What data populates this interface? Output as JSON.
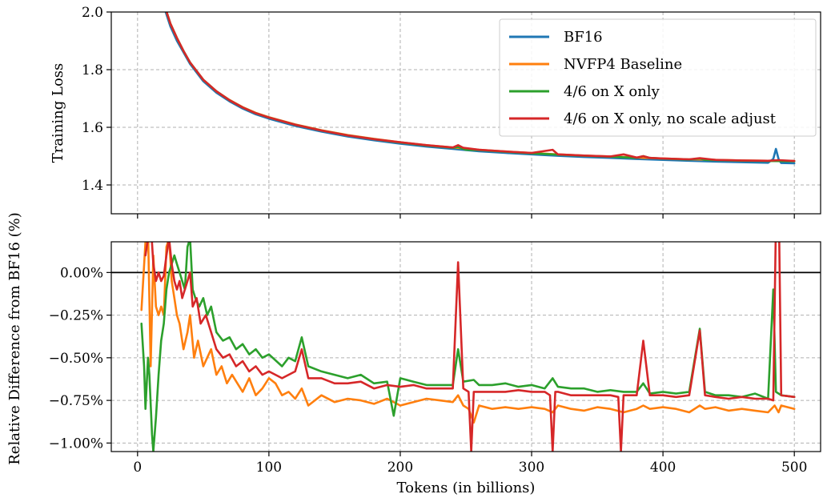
{
  "chart_data": [
    {
      "type": "line",
      "ylabel": "Training Loss",
      "xlabel": "",
      "xlim": [
        -20,
        520
      ],
      "ylim": [
        1.3,
        2.0
      ],
      "xticks": [
        0,
        100,
        200,
        300,
        400,
        500
      ],
      "yticks": [
        1.4,
        1.6,
        1.8,
        2.0
      ],
      "ytick_labels": [
        "1.4",
        "1.6",
        "1.8",
        "2.0"
      ],
      "grid": true,
      "legend_position": "top-right",
      "series": [
        {
          "name": "BF16",
          "color": "#1f77b4",
          "x": [
            20,
            25,
            30,
            35,
            40,
            50,
            60,
            70,
            80,
            90,
            100,
            120,
            140,
            160,
            180,
            200,
            220,
            240,
            260,
            280,
            300,
            320,
            340,
            360,
            380,
            400,
            420,
            440,
            460,
            480,
            484,
            486,
            488,
            490,
            500
          ],
          "y": [
            2.02,
            1.95,
            1.9,
            1.86,
            1.82,
            1.76,
            1.72,
            1.69,
            1.665,
            1.645,
            1.63,
            1.605,
            1.585,
            1.568,
            1.555,
            1.543,
            1.533,
            1.525,
            1.517,
            1.511,
            1.506,
            1.501,
            1.497,
            1.494,
            1.49,
            1.487,
            1.484,
            1.481,
            1.479,
            1.477,
            1.49,
            1.525,
            1.49,
            1.476,
            1.475
          ]
        },
        {
          "name": "NVFP4 Baseline",
          "color": "#ff7f0e",
          "x": [
            20,
            25,
            30,
            35,
            40,
            50,
            60,
            70,
            80,
            90,
            100,
            120,
            140,
            160,
            180,
            200,
            220,
            240,
            260,
            280,
            300,
            320,
            340,
            360,
            380,
            400,
            420,
            440,
            460,
            480,
            500
          ],
          "y": [
            2.03,
            1.96,
            1.91,
            1.865,
            1.825,
            1.765,
            1.725,
            1.695,
            1.67,
            1.65,
            1.635,
            1.61,
            1.59,
            1.573,
            1.56,
            1.548,
            1.538,
            1.53,
            1.522,
            1.516,
            1.511,
            1.506,
            1.502,
            1.499,
            1.495,
            1.492,
            1.489,
            1.487,
            1.485,
            1.484,
            1.483
          ]
        },
        {
          "name": "4/6 on X only",
          "color": "#2ca02c",
          "x": [
            20,
            25,
            30,
            35,
            40,
            50,
            60,
            70,
            80,
            90,
            100,
            120,
            140,
            160,
            180,
            200,
            220,
            240,
            244,
            250,
            260,
            280,
            300,
            320,
            340,
            360,
            380,
            385,
            390,
            400,
            420,
            428,
            432,
            440,
            460,
            480,
            500
          ],
          "y": [
            2.03,
            1.96,
            1.91,
            1.865,
            1.825,
            1.765,
            1.725,
            1.694,
            1.669,
            1.649,
            1.634,
            1.609,
            1.589,
            1.572,
            1.559,
            1.547,
            1.537,
            1.529,
            1.532,
            1.522,
            1.521,
            1.515,
            1.51,
            1.505,
            1.501,
            1.498,
            1.494,
            1.5,
            1.494,
            1.491,
            1.488,
            1.492,
            1.487,
            1.486,
            1.484,
            1.483,
            1.482
          ]
        },
        {
          "name": "4/6 on X only, no scale adjust",
          "color": "#d62728",
          "x": [
            20,
            25,
            30,
            35,
            40,
            50,
            60,
            70,
            80,
            90,
            100,
            120,
            140,
            160,
            180,
            200,
            220,
            240,
            244,
            248,
            260,
            280,
            300,
            316,
            320,
            340,
            360,
            370,
            380,
            385,
            390,
            400,
            420,
            428,
            440,
            460,
            480,
            488,
            500
          ],
          "y": [
            2.03,
            1.96,
            1.91,
            1.865,
            1.825,
            1.765,
            1.725,
            1.694,
            1.669,
            1.649,
            1.634,
            1.609,
            1.589,
            1.572,
            1.559,
            1.548,
            1.538,
            1.53,
            1.538,
            1.529,
            1.522,
            1.516,
            1.511,
            1.522,
            1.506,
            1.502,
            1.499,
            1.506,
            1.495,
            1.5,
            1.494,
            1.492,
            1.489,
            1.493,
            1.487,
            1.485,
            1.484,
            1.486,
            1.483
          ]
        }
      ]
    },
    {
      "type": "line",
      "ylabel": "Relative Difference from BF16 (%)",
      "xlabel": "Tokens (in billions)",
      "xlim": [
        -20,
        520
      ],
      "ylim": [
        -1.05,
        0.18
      ],
      "xticks": [
        0,
        100,
        200,
        300,
        400,
        500
      ],
      "xtick_labels": [
        "0",
        "100",
        "200",
        "300",
        "400",
        "500"
      ],
      "yticks": [
        0.0,
        -0.25,
        -0.5,
        -0.75,
        -1.0
      ],
      "ytick_labels": [
        "0.00%",
        "−0.25%",
        "−0.50%",
        "−0.75%",
        "−1.00%"
      ],
      "reference_line": 0.0,
      "grid": true,
      "series": [
        {
          "name": "NVFP4 Baseline",
          "color": "#ff7f0e",
          "x": [
            3,
            6,
            8,
            10,
            12,
            14,
            16,
            18,
            20,
            22,
            24,
            26,
            28,
            30,
            32,
            35,
            38,
            40,
            43,
            46,
            50,
            53,
            56,
            60,
            64,
            68,
            72,
            76,
            80,
            85,
            90,
            95,
            100,
            105,
            110,
            115,
            120,
            125,
            130,
            140,
            150,
            160,
            170,
            180,
            190,
            200,
            210,
            220,
            230,
            240,
            244,
            248,
            252,
            256,
            260,
            270,
            280,
            290,
            300,
            310,
            316,
            320,
            330,
            340,
            350,
            360,
            370,
            380,
            385,
            390,
            400,
            410,
            420,
            428,
            432,
            440,
            450,
            460,
            470,
            480,
            485,
            488,
            490,
            495,
            500
          ],
          "y": [
            -0.22,
            0.18,
            0.25,
            -0.55,
            0.1,
            -0.2,
            -0.25,
            -0.2,
            -0.25,
            0.15,
            0.2,
            -0.05,
            -0.15,
            -0.25,
            -0.3,
            -0.45,
            -0.35,
            -0.25,
            -0.5,
            -0.4,
            -0.55,
            -0.5,
            -0.45,
            -0.6,
            -0.55,
            -0.65,
            -0.6,
            -0.65,
            -0.7,
            -0.62,
            -0.72,
            -0.68,
            -0.62,
            -0.65,
            -0.72,
            -0.7,
            -0.74,
            -0.68,
            -0.78,
            -0.72,
            -0.76,
            -0.74,
            -0.75,
            -0.77,
            -0.74,
            -0.78,
            -0.76,
            -0.74,
            -0.75,
            -0.76,
            -0.72,
            -0.78,
            -0.8,
            -0.88,
            -0.78,
            -0.8,
            -0.79,
            -0.8,
            -0.79,
            -0.8,
            -0.82,
            -0.78,
            -0.8,
            -0.81,
            -0.79,
            -0.8,
            -0.82,
            -0.8,
            -0.78,
            -0.8,
            -0.79,
            -0.8,
            -0.82,
            -0.78,
            -0.8,
            -0.79,
            -0.81,
            -0.8,
            -0.81,
            -0.82,
            -0.78,
            -0.82,
            -0.78,
            -0.79,
            -0.8
          ]
        },
        {
          "name": "4/6 on X only",
          "color": "#2ca02c",
          "x": [
            3,
            5,
            6,
            8,
            9,
            11,
            12,
            14,
            16,
            18,
            20,
            22,
            24,
            26,
            28,
            30,
            32,
            34,
            36,
            38,
            40,
            42,
            44,
            47,
            50,
            53,
            56,
            60,
            65,
            70,
            75,
            80,
            85,
            90,
            95,
            100,
            110,
            115,
            120,
            125,
            130,
            140,
            150,
            160,
            170,
            180,
            190,
            195,
            200,
            210,
            220,
            230,
            240,
            244,
            248,
            256,
            260,
            270,
            280,
            290,
            300,
            310,
            316,
            320,
            330,
            340,
            350,
            360,
            370,
            380,
            385,
            390,
            400,
            410,
            420,
            428,
            432,
            440,
            450,
            460,
            470,
            480,
            484,
            486,
            490,
            500
          ],
          "y": [
            -0.3,
            -0.55,
            -0.8,
            -0.5,
            -0.6,
            -0.95,
            -1.05,
            -0.85,
            -0.6,
            -0.4,
            -0.3,
            -0.1,
            0.0,
            0.05,
            0.1,
            0.05,
            0.0,
            -0.05,
            -0.1,
            0.15,
            0.2,
            -0.1,
            -0.15,
            -0.2,
            -0.15,
            -0.25,
            -0.2,
            -0.35,
            -0.4,
            -0.38,
            -0.45,
            -0.42,
            -0.48,
            -0.45,
            -0.5,
            -0.48,
            -0.55,
            -0.5,
            -0.52,
            -0.38,
            -0.55,
            -0.58,
            -0.6,
            -0.62,
            -0.6,
            -0.65,
            -0.64,
            -0.84,
            -0.62,
            -0.64,
            -0.66,
            -0.66,
            -0.66,
            -0.45,
            -0.64,
            -0.63,
            -0.66,
            -0.66,
            -0.65,
            -0.67,
            -0.66,
            -0.68,
            -0.62,
            -0.67,
            -0.68,
            -0.68,
            -0.7,
            -0.69,
            -0.7,
            -0.7,
            -0.65,
            -0.71,
            -0.7,
            -0.71,
            -0.7,
            -0.33,
            -0.7,
            -0.72,
            -0.72,
            -0.73,
            -0.71,
            -0.74,
            -0.1,
            -0.7,
            -0.72,
            -0.73
          ]
        },
        {
          "name": "4/6 on X only, no scale adjust",
          "color": "#d62728",
          "x": [
            6,
            8,
            10,
            12,
            14,
            16,
            18,
            20,
            22,
            24,
            26,
            28,
            30,
            32,
            34,
            36,
            38,
            40,
            42,
            45,
            48,
            52,
            56,
            60,
            65,
            70,
            75,
            80,
            85,
            90,
            95,
            100,
            110,
            115,
            120,
            125,
            130,
            140,
            150,
            160,
            170,
            180,
            190,
            200,
            210,
            220,
            230,
            240,
            244,
            248,
            252,
            254,
            256,
            260,
            270,
            280,
            290,
            300,
            310,
            314,
            316,
            318,
            320,
            330,
            340,
            350,
            360,
            366,
            368,
            370,
            380,
            385,
            390,
            400,
            410,
            420,
            428,
            432,
            440,
            450,
            460,
            470,
            480,
            484,
            486,
            488,
            490,
            500
          ],
          "y": [
            0.1,
            0.2,
            0.3,
            0.05,
            -0.05,
            0.0,
            -0.05,
            -0.02,
            0.1,
            0.2,
            0.05,
            -0.05,
            -0.1,
            -0.05,
            -0.15,
            -0.1,
            -0.05,
            0.0,
            -0.2,
            -0.15,
            -0.3,
            -0.25,
            -0.35,
            -0.45,
            -0.5,
            -0.48,
            -0.55,
            -0.52,
            -0.58,
            -0.55,
            -0.6,
            -0.58,
            -0.62,
            -0.6,
            -0.58,
            -0.45,
            -0.62,
            -0.62,
            -0.65,
            -0.65,
            -0.64,
            -0.68,
            -0.66,
            -0.67,
            -0.66,
            -0.68,
            -0.68,
            -0.68,
            0.06,
            -0.68,
            -0.7,
            -1.05,
            -0.7,
            -0.7,
            -0.7,
            -0.7,
            -0.69,
            -0.7,
            -0.7,
            -0.72,
            -1.05,
            -0.7,
            -0.7,
            -0.72,
            -0.72,
            -0.72,
            -0.72,
            -0.73,
            -1.05,
            -0.72,
            -0.72,
            -0.4,
            -0.72,
            -0.72,
            -0.73,
            -0.72,
            -0.34,
            -0.72,
            -0.73,
            -0.74,
            -0.73,
            -0.74,
            -0.74,
            -0.75,
            0.3,
            0.5,
            -0.72,
            -0.73
          ]
        }
      ]
    }
  ]
}
